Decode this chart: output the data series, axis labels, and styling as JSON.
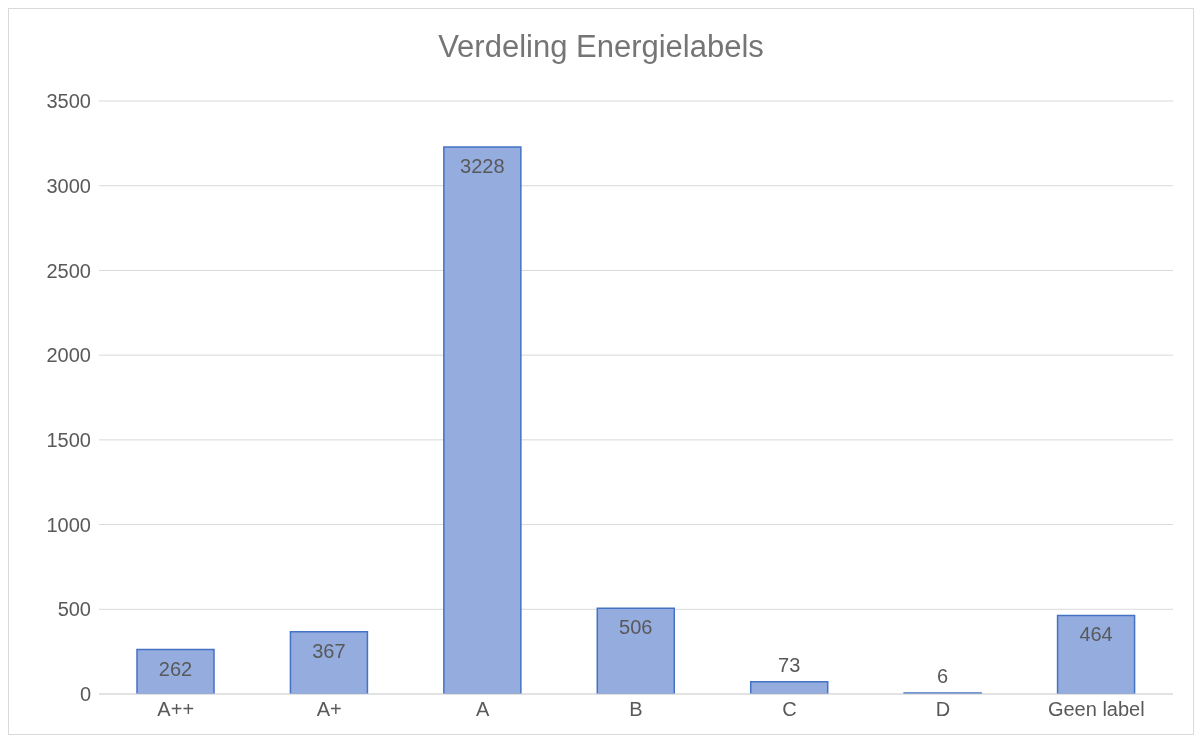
{
  "chart_data": {
    "type": "bar",
    "title": "Verdeling Energielabels",
    "categories": [
      "A++",
      "A+",
      "A",
      "B",
      "C",
      "D",
      "Geen label"
    ],
    "values": [
      262,
      367,
      3228,
      506,
      73,
      6,
      464
    ],
    "color": "#95acdf",
    "ylim": [
      0,
      3500
    ],
    "yticks": [
      0,
      500,
      1000,
      1500,
      2000,
      2500,
      3000,
      3500
    ],
    "grid": "y",
    "data_labels": true
  }
}
